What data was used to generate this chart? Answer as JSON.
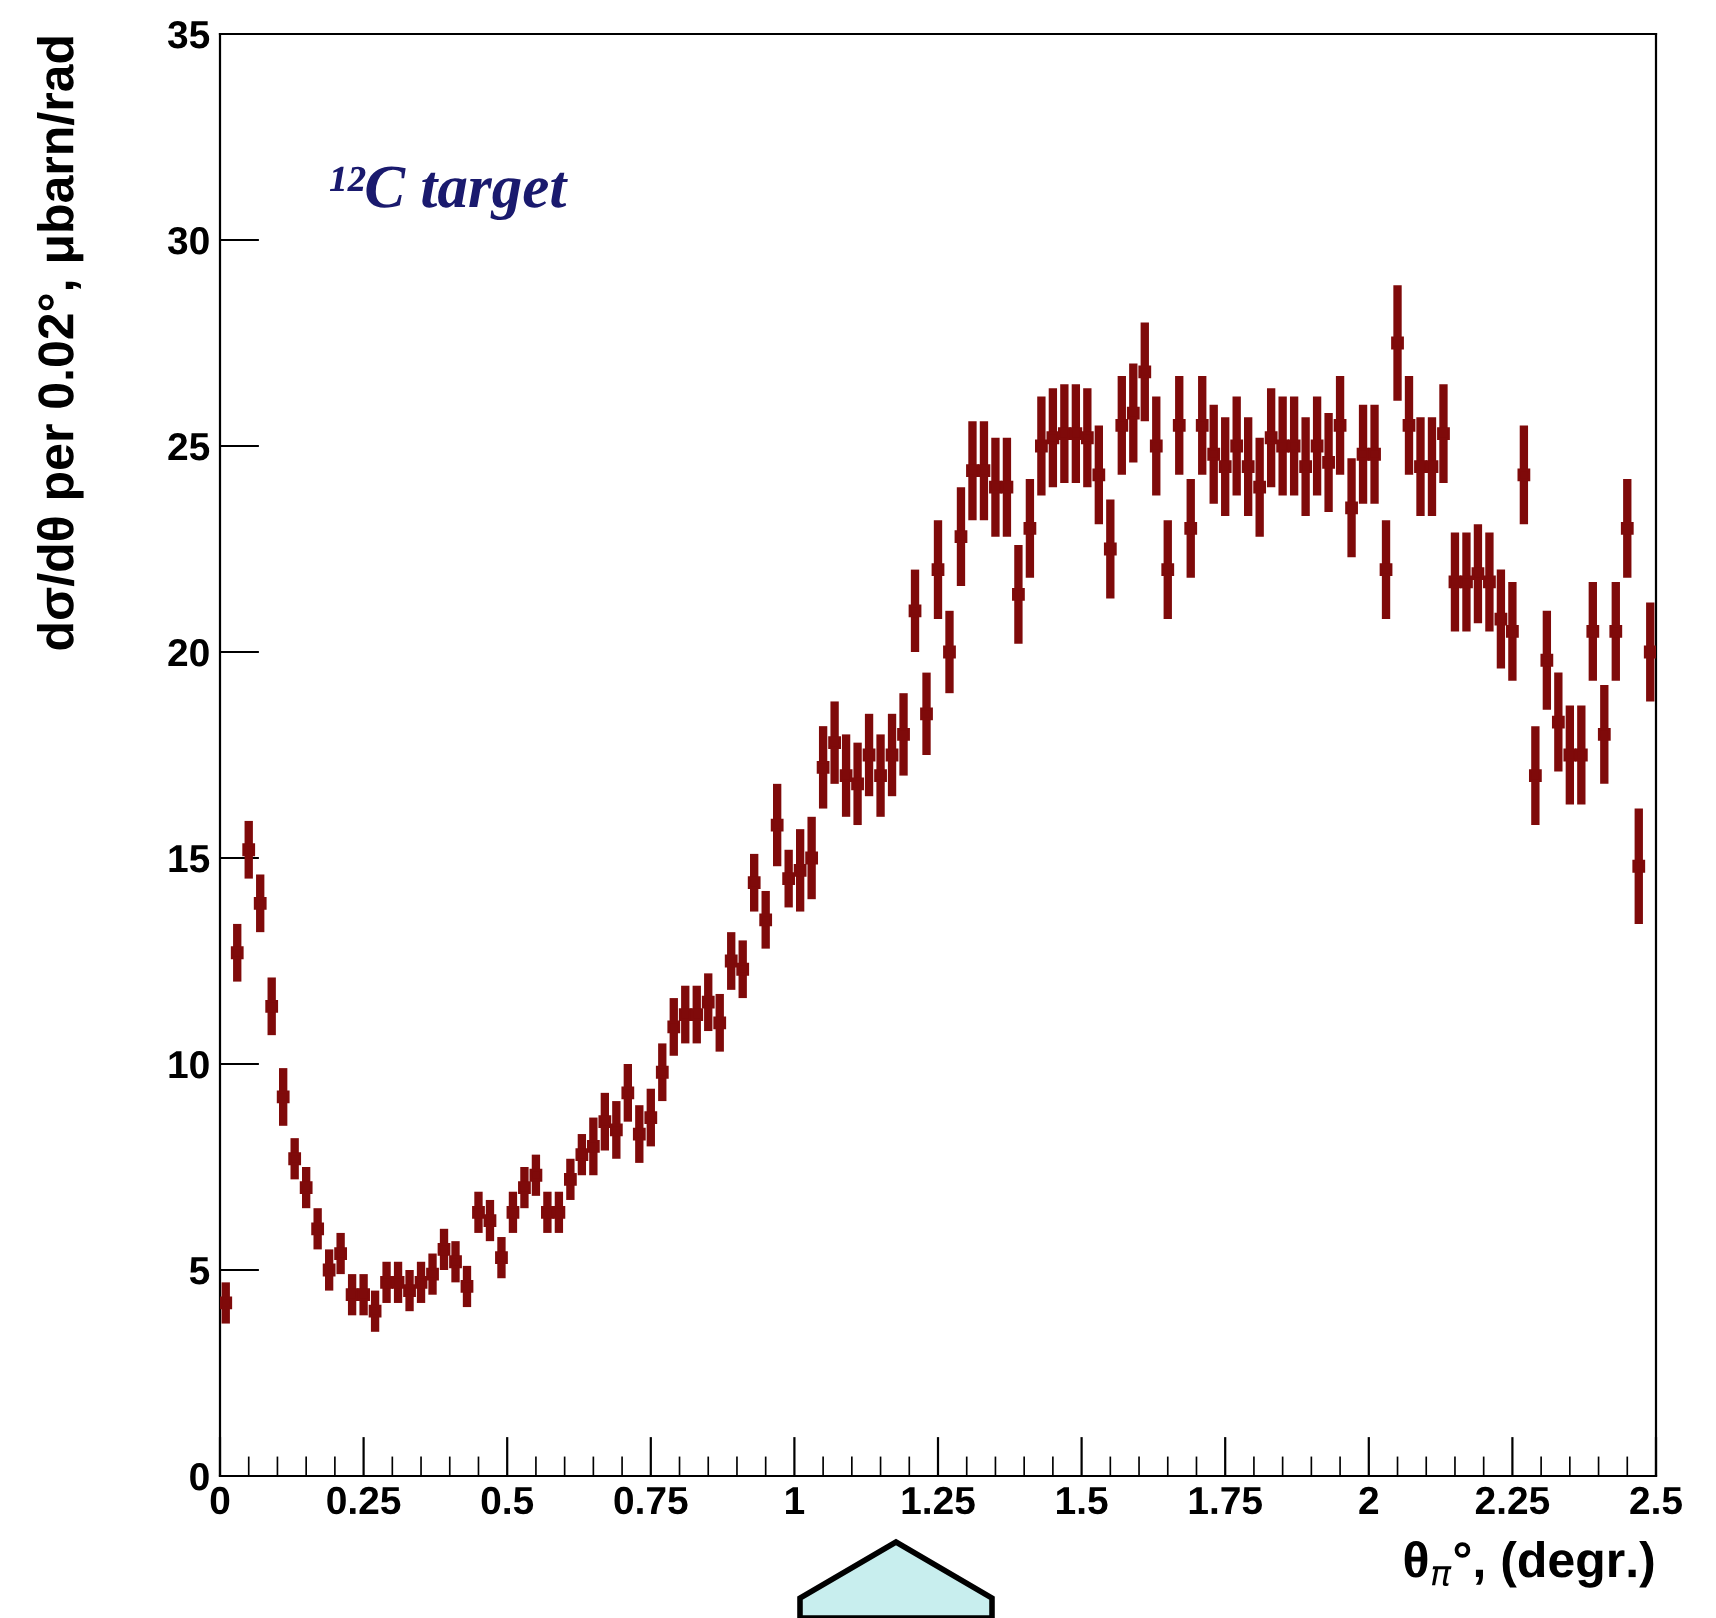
{
  "chart_data": {
    "type": "scatter",
    "xlabel": "θ$_{π}$°, (degr.)",
    "ylabel": "dσ/dθ per 0.02°, μbarn/rad",
    "annotations": [
      "¹²C target"
    ],
    "xlim": [
      0,
      2.5
    ],
    "ylim": [
      0,
      35
    ],
    "xticks": [
      0,
      0.25,
      0.5,
      0.75,
      1,
      1.25,
      1.5,
      1.75,
      2,
      2.25,
      2.5
    ],
    "yticks": [
      0,
      5,
      10,
      15,
      20,
      25,
      30,
      35
    ],
    "marker": "square",
    "grid": false,
    "series": [
      {
        "color": "#7f0a0a",
        "x": [
          0.01,
          0.03,
          0.05,
          0.07,
          0.09,
          0.11,
          0.13,
          0.15,
          0.17,
          0.19,
          0.21,
          0.23,
          0.25,
          0.27,
          0.29,
          0.31,
          0.33,
          0.35,
          0.37,
          0.39,
          0.41,
          0.43,
          0.45,
          0.47,
          0.49,
          0.51,
          0.53,
          0.55,
          0.57,
          0.59,
          0.61,
          0.63,
          0.65,
          0.67,
          0.69,
          0.71,
          0.73,
          0.75,
          0.77,
          0.79,
          0.81,
          0.83,
          0.85,
          0.87,
          0.89,
          0.91,
          0.93,
          0.95,
          0.97,
          0.99,
          1.01,
          1.03,
          1.05,
          1.07,
          1.09,
          1.11,
          1.13,
          1.15,
          1.17,
          1.19,
          1.21,
          1.23,
          1.25,
          1.27,
          1.29,
          1.31,
          1.33,
          1.35,
          1.37,
          1.39,
          1.41,
          1.43,
          1.45,
          1.47,
          1.49,
          1.51,
          1.53,
          1.55,
          1.57,
          1.59,
          1.61,
          1.63,
          1.65,
          1.67,
          1.69,
          1.71,
          1.73,
          1.75,
          1.77,
          1.79,
          1.81,
          1.83,
          1.85,
          1.87,
          1.89,
          1.91,
          1.93,
          1.95,
          1.97,
          1.99,
          2.01,
          2.03,
          2.05,
          2.07,
          2.09,
          2.11,
          2.13,
          2.15,
          2.17,
          2.19,
          2.21,
          2.23,
          2.25,
          2.27,
          2.29,
          2.31,
          2.33,
          2.35,
          2.37,
          2.39,
          2.41,
          2.43,
          2.45,
          2.47,
          2.49
        ],
        "values": [
          4.2,
          12.7,
          15.2,
          13.9,
          11.4,
          9.2,
          7.7,
          7.0,
          6.0,
          5.0,
          5.4,
          4.4,
          4.4,
          4.0,
          4.7,
          4.7,
          4.5,
          4.7,
          4.9,
          5.5,
          5.2,
          4.6,
          6.4,
          6.2,
          5.3,
          6.4,
          7.0,
          7.3,
          6.4,
          6.4,
          7.2,
          7.8,
          8.0,
          8.6,
          8.4,
          9.3,
          8.3,
          8.7,
          9.8,
          10.9,
          11.2,
          11.2,
          11.5,
          11.0,
          12.5,
          12.3,
          14.4,
          13.5,
          15.8,
          14.5,
          14.7,
          15.0,
          17.2,
          17.8,
          17.0,
          16.8,
          17.5,
          17.0,
          17.5,
          18.0,
          21.0,
          18.5,
          22.0,
          20.0,
          22.8,
          24.4,
          24.4,
          24.0,
          24.0,
          21.4,
          23.0,
          25.0,
          25.2,
          25.3,
          25.3,
          25.2,
          24.3,
          22.5,
          25.5,
          25.8,
          26.8,
          25.0,
          22.0,
          25.5,
          23.0,
          25.5,
          24.8,
          24.5,
          25.0,
          24.5,
          24.0,
          25.2,
          25.0,
          25.0,
          24.5,
          25.0,
          24.6,
          25.5,
          23.5,
          24.8,
          24.8,
          22.0,
          27.5,
          25.5,
          24.5,
          24.5,
          25.3,
          21.7,
          21.7,
          21.9,
          21.7,
          20.8,
          20.5,
          24.3,
          17.0,
          19.8,
          18.3,
          17.5,
          17.5,
          20.5,
          18.0,
          20.5,
          23.0,
          14.8,
          20.0
        ],
        "errors": [
          0.5,
          0.7,
          0.7,
          0.7,
          0.7,
          0.7,
          0.5,
          0.5,
          0.5,
          0.5,
          0.5,
          0.5,
          0.5,
          0.5,
          0.5,
          0.5,
          0.5,
          0.5,
          0.5,
          0.5,
          0.5,
          0.5,
          0.5,
          0.5,
          0.5,
          0.5,
          0.5,
          0.5,
          0.5,
          0.5,
          0.5,
          0.5,
          0.7,
          0.7,
          0.7,
          0.7,
          0.7,
          0.7,
          0.7,
          0.7,
          0.7,
          0.7,
          0.7,
          0.7,
          0.7,
          0.7,
          0.7,
          0.7,
          1.0,
          0.7,
          1.0,
          1.0,
          1.0,
          1.0,
          1.0,
          1.0,
          1.0,
          1.0,
          1.0,
          1.0,
          1.0,
          1.0,
          1.2,
          1.0,
          1.2,
          1.2,
          1.2,
          1.2,
          1.2,
          1.2,
          1.2,
          1.2,
          1.2,
          1.2,
          1.2,
          1.2,
          1.2,
          1.2,
          1.2,
          1.2,
          1.2,
          1.2,
          1.2,
          1.2,
          1.2,
          1.2,
          1.2,
          1.2,
          1.2,
          1.2,
          1.2,
          1.2,
          1.2,
          1.2,
          1.2,
          1.2,
          1.2,
          1.2,
          1.2,
          1.2,
          1.2,
          1.2,
          1.4,
          1.2,
          1.2,
          1.2,
          1.2,
          1.2,
          1.2,
          1.2,
          1.2,
          1.2,
          1.2,
          1.2,
          1.2,
          1.2,
          1.2,
          1.2,
          1.2,
          1.2,
          1.2,
          1.2,
          1.2,
          1.4,
          1.2
        ]
      }
    ]
  }
}
